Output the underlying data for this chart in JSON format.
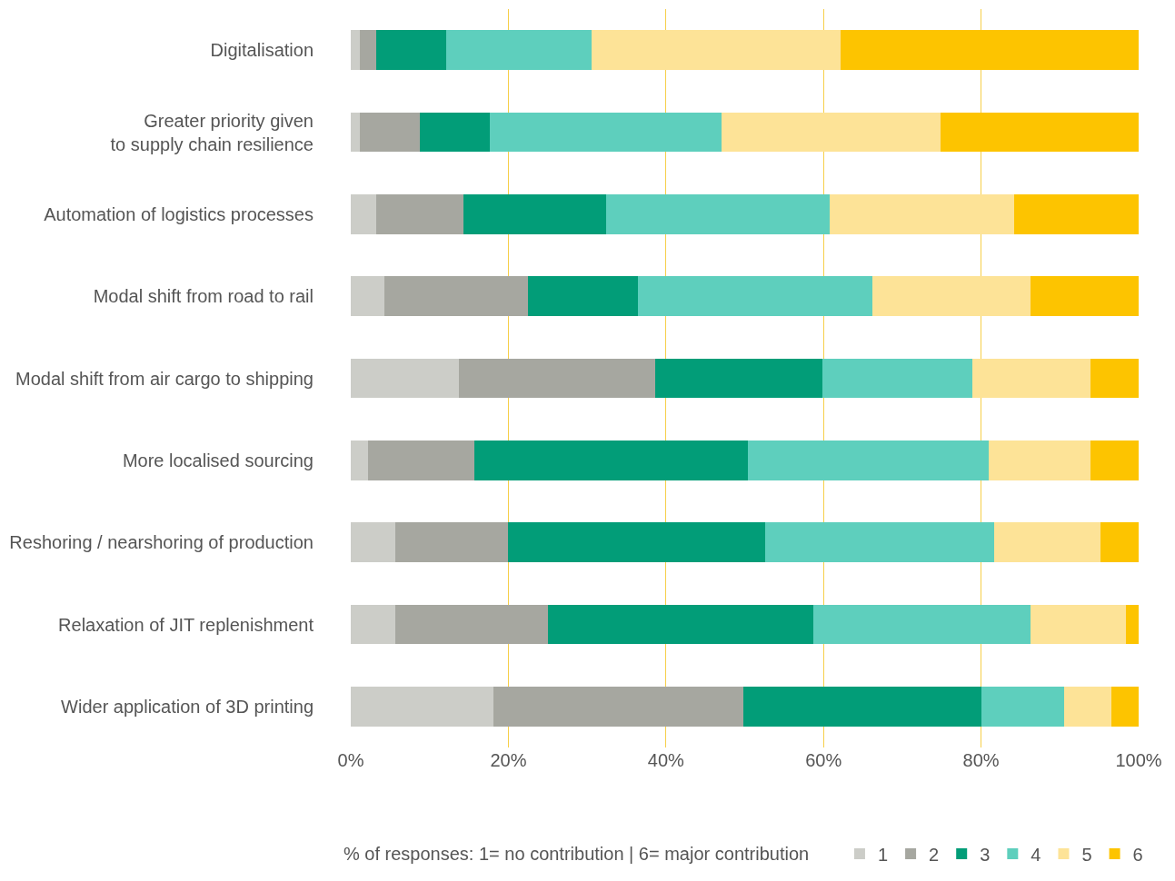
{
  "chart_data": {
    "type": "bar",
    "orientation": "horizontal",
    "stacked": true,
    "categories": [
      "Digitalisation",
      "Greater priority given\nto supply chain resilience",
      "Automation of logistics processes",
      "Modal shift from road to rail",
      "Modal shift from air cargo to shipping",
      "More localised sourcing",
      "Reshoring / nearshoring of production",
      "Relaxation of JIT replenishment",
      "Wider application of 3D printing"
    ],
    "series": [
      {
        "name": "1",
        "color": "#cccdc8",
        "values": [
          1.1,
          1.1,
          3.2,
          4.3,
          13.7,
          2.2,
          5.6,
          5.6,
          18.1
        ]
      },
      {
        "name": "2",
        "color": "#a6a7a0",
        "values": [
          2.1,
          7.7,
          11.1,
          18.2,
          24.9,
          13.5,
          14.4,
          19.4,
          31.7
        ]
      },
      {
        "name": "3",
        "color": "#029d78",
        "values": [
          8.9,
          8.8,
          18.1,
          13.9,
          21.3,
          34.7,
          32.6,
          33.7,
          30.3
        ]
      },
      {
        "name": "4",
        "color": "#5ecfbd",
        "values": [
          18.5,
          29.5,
          28.4,
          29.8,
          19.0,
          30.6,
          29.1,
          27.6,
          10.4
        ]
      },
      {
        "name": "5",
        "color": "#fde397",
        "values": [
          31.6,
          27.8,
          23.4,
          20.1,
          15.0,
          12.9,
          13.5,
          12.1,
          6.0
        ]
      },
      {
        "name": "6",
        "color": "#fdc400",
        "values": [
          37.8,
          25.1,
          15.8,
          13.7,
          6.1,
          6.1,
          4.8,
          1.6,
          3.5
        ]
      }
    ],
    "xlim": [
      0,
      100
    ],
    "xticks": [
      {
        "value": 0,
        "label": "0%"
      },
      {
        "value": 20,
        "label": "20%"
      },
      {
        "value": 40,
        "label": "40%"
      },
      {
        "value": 60,
        "label": "60%"
      },
      {
        "value": 80,
        "label": "80%"
      },
      {
        "value": 100,
        "label": "100%"
      }
    ],
    "grid": "x",
    "legend": "bottom",
    "legend_title": "% of responses: 1= no contribution | 6= major contribution"
  }
}
